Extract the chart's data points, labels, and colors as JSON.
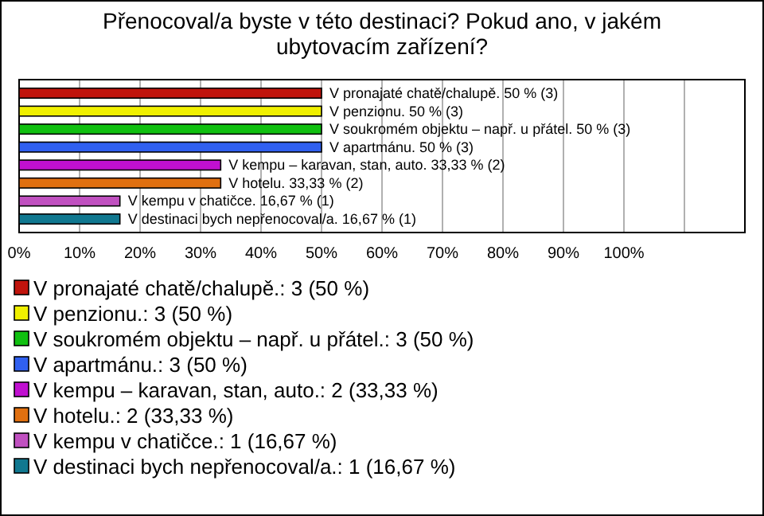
{
  "chart_data": {
    "type": "bar",
    "orientation": "horizontal",
    "stacked": true,
    "title": "Přenocoval/a byste v této destinaci? Pokud ano, v jakém ubytovacím zařízení?",
    "categories": [
      null,
      null,
      null,
      null,
      null,
      null,
      null,
      null
    ],
    "series": [
      {
        "name": "V pronajaté chatě/chalupě.: 3 (50 %)",
        "color": "#c0140c",
        "values": [
          50,
          null,
          null,
          null,
          null,
          null,
          null,
          null
        ],
        "value_labels": [
          "V pronajaté chatě/chalupě. 50 % (3)",
          null,
          null,
          null,
          null,
          null,
          null,
          null
        ]
      },
      {
        "name": "V penzionu.: 3 (50 %)",
        "color": "#f0f000",
        "values": [
          null,
          50,
          null,
          null,
          null,
          null,
          null,
          null
        ],
        "value_labels": [
          null,
          "V penzionu. 50 % (3)",
          null,
          null,
          null,
          null,
          null,
          null
        ]
      },
      {
        "name": "V soukromém objektu – např. u přátel.: 3 (50 %)",
        "color": "#10c010",
        "values": [
          null,
          null,
          50,
          null,
          null,
          null,
          null,
          null
        ],
        "value_labels": [
          null,
          null,
          "V soukromém objektu – např. u přátel. 50 % (3)",
          null,
          null,
          null,
          null,
          null
        ]
      },
      {
        "name": "V apartmánu.: 3 (50 %)",
        "color": "#3060f0",
        "values": [
          null,
          null,
          null,
          50,
          null,
          null,
          null,
          null
        ],
        "value_labels": [
          null,
          null,
          null,
          "V apartmánu. 50 % (3)",
          null,
          null,
          null,
          null
        ]
      },
      {
        "name": "V kempu – karavan, stan, auto.: 2 (33,33 %)",
        "color": "#c010d0",
        "values": [
          null,
          null,
          null,
          null,
          33.33,
          null,
          null,
          null
        ],
        "value_labels": [
          null,
          null,
          null,
          null,
          "V kempu – karavan, stan, auto. 33,33 % (2)",
          null,
          null,
          null
        ]
      },
      {
        "name": "V hotelu.: 2 (33,33 %)",
        "color": "#e07010",
        "values": [
          null,
          null,
          null,
          null,
          null,
          33.33,
          null,
          null
        ],
        "value_labels": [
          null,
          null,
          null,
          null,
          null,
          "V hotelu. 33,33 % (2)",
          null,
          null
        ]
      },
      {
        "name": "V kempu v chatičce.: 1 (16,67 %)",
        "color": "#c050c0",
        "values": [
          null,
          null,
          null,
          null,
          null,
          null,
          16.67,
          null
        ],
        "value_labels": [
          null,
          null,
          null,
          null,
          null,
          null,
          "V kempu v chatičce. 16,67 % (1)",
          null
        ]
      },
      {
        "name": "V destinaci bych nepřenocoval/a.: 1 (16,67 %)",
        "color": "#107890",
        "values": [
          null,
          null,
          null,
          null,
          null,
          null,
          null,
          16.67
        ],
        "value_labels": [
          null,
          null,
          null,
          null,
          null,
          null,
          null,
          "V destinaci bych nepřenocoval/a. 16,67 % (1)"
        ]
      }
    ],
    "xlim": [
      0,
      120
    ],
    "xticks": [
      {
        "value": 0,
        "label": "0%"
      },
      {
        "value": 10,
        "label": "10%"
      },
      {
        "value": 20,
        "label": "20%"
      },
      {
        "value": 30,
        "label": "30%"
      },
      {
        "value": 40,
        "label": "40%"
      },
      {
        "value": 50,
        "label": "50%"
      },
      {
        "value": 60,
        "label": "60%"
      },
      {
        "value": 70,
        "label": "70%"
      },
      {
        "value": 80,
        "label": "80%"
      },
      {
        "value": 90,
        "label": "90%"
      },
      {
        "value": 100,
        "label": "100%"
      },
      {
        "value": 110,
        "label": null
      },
      {
        "value": 120,
        "label": null
      }
    ],
    "grid": "x",
    "legend": "bottom",
    "tick_labels": "x"
  }
}
